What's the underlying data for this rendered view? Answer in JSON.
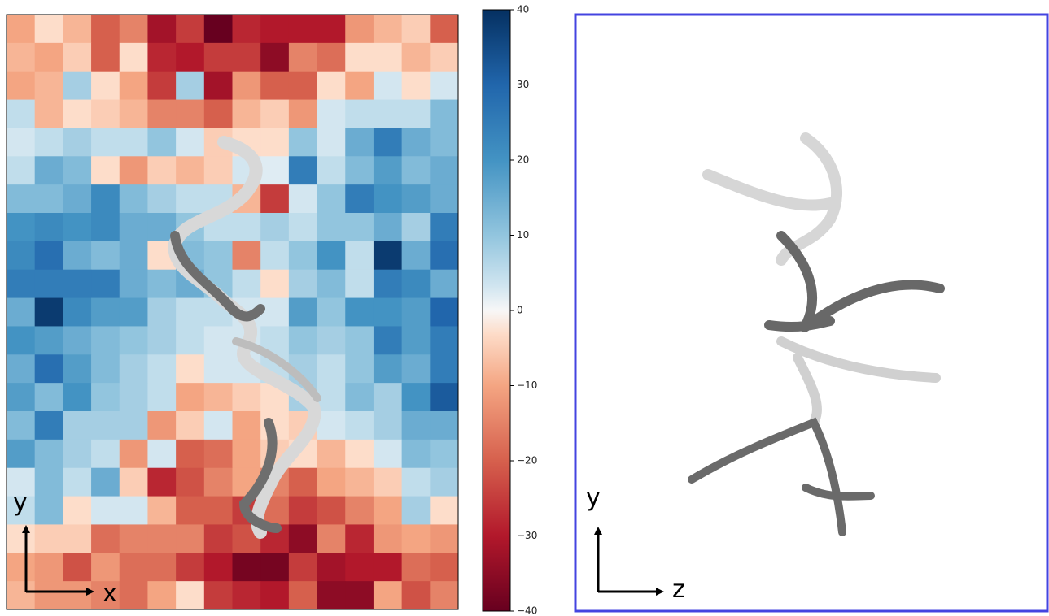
{
  "chart_data": {
    "type": "heatmap",
    "colormap": "RdBu",
    "clim": [
      -40,
      40
    ],
    "colorbar_ticks": [
      {
        "value": -40,
        "label": "−40"
      },
      {
        "value": -30,
        "label": "−30"
      },
      {
        "value": -20,
        "label": "−20"
      },
      {
        "value": -10,
        "label": "−10"
      },
      0,
      10,
      20,
      30,
      40
    ],
    "values": [
      [
        -10,
        -3,
        -8,
        -20,
        -15,
        -32,
        -25,
        -40,
        -28,
        -30,
        -30,
        -30,
        -12,
        -8,
        -5,
        -20
      ],
      [
        -8,
        -10,
        -5,
        -20,
        -3,
        -28,
        -30,
        -25,
        -25,
        -35,
        -15,
        -18,
        -3,
        -3,
        -8,
        -5
      ],
      [
        -10,
        -8,
        8,
        -3,
        -10,
        -25,
        8,
        -32,
        -12,
        -20,
        -20,
        -3,
        -10,
        3,
        -3,
        3
      ],
      [
        5,
        -8,
        -3,
        -5,
        -8,
        -15,
        -15,
        -20,
        -8,
        -5,
        -12,
        3,
        5,
        5,
        5,
        12
      ],
      [
        3,
        5,
        8,
        5,
        5,
        10,
        3,
        -5,
        -3,
        -3,
        10,
        3,
        15,
        25,
        15,
        12
      ],
      [
        5,
        15,
        12,
        -3,
        -12,
        -5,
        -8,
        -5,
        3,
        2,
        25,
        5,
        12,
        18,
        12,
        15
      ],
      [
        12,
        12,
        15,
        22,
        12,
        8,
        5,
        5,
        -8,
        -25,
        3,
        10,
        25,
        20,
        18,
        15
      ],
      [
        20,
        22,
        20,
        22,
        15,
        15,
        10,
        5,
        5,
        8,
        5,
        10,
        10,
        15,
        8,
        25
      ],
      [
        22,
        28,
        15,
        12,
        15,
        -3,
        12,
        10,
        -15,
        5,
        10,
        20,
        5,
        38,
        15,
        28
      ],
      [
        25,
        25,
        25,
        25,
        15,
        12,
        15,
        10,
        5,
        -3,
        8,
        12,
        5,
        25,
        22,
        15
      ],
      [
        15,
        38,
        22,
        18,
        18,
        8,
        5,
        5,
        3,
        3,
        18,
        10,
        20,
        20,
        18,
        30
      ],
      [
        20,
        18,
        15,
        12,
        10,
        8,
        5,
        3,
        3,
        5,
        10,
        8,
        10,
        25,
        18,
        25
      ],
      [
        15,
        28,
        18,
        12,
        8,
        5,
        -3,
        3,
        3,
        5,
        8,
        5,
        10,
        18,
        15,
        25
      ],
      [
        18,
        12,
        20,
        10,
        8,
        5,
        -10,
        -8,
        -5,
        -3,
        8,
        5,
        12,
        8,
        20,
        32
      ],
      [
        12,
        25,
        8,
        8,
        8,
        -12,
        -5,
        3,
        -10,
        -3,
        -5,
        3,
        5,
        8,
        15,
        15
      ],
      [
        18,
        12,
        8,
        5,
        -12,
        3,
        -20,
        -18,
        -10,
        -5,
        -3,
        -8,
        -3,
        3,
        12,
        10
      ],
      [
        3,
        12,
        5,
        15,
        -5,
        -28,
        -22,
        -15,
        -10,
        -15,
        -20,
        -10,
        -8,
        -5,
        5,
        8
      ],
      [
        5,
        12,
        -3,
        3,
        3,
        -8,
        -20,
        -20,
        -25,
        -18,
        -25,
        -22,
        -15,
        -10,
        8,
        -3
      ],
      [
        -3,
        -5,
        -5,
        -18,
        -15,
        -15,
        -15,
        -25,
        -22,
        -28,
        -35,
        -15,
        -28,
        -12,
        -10,
        -12
      ],
      [
        -10,
        -12,
        -22,
        -12,
        -18,
        -18,
        -25,
        -30,
        -38,
        -38,
        -25,
        -32,
        -30,
        -30,
        -18,
        -20
      ],
      [
        -8,
        -12,
        -12,
        -15,
        -18,
        -10,
        -3,
        -25,
        -28,
        -30,
        -20,
        -35,
        -35,
        -10,
        -22,
        -15
      ]
    ],
    "left_axes": {
      "vertical": "y",
      "horizontal": "x"
    },
    "right_axes": {
      "vertical": "y",
      "horizontal": "z"
    }
  }
}
